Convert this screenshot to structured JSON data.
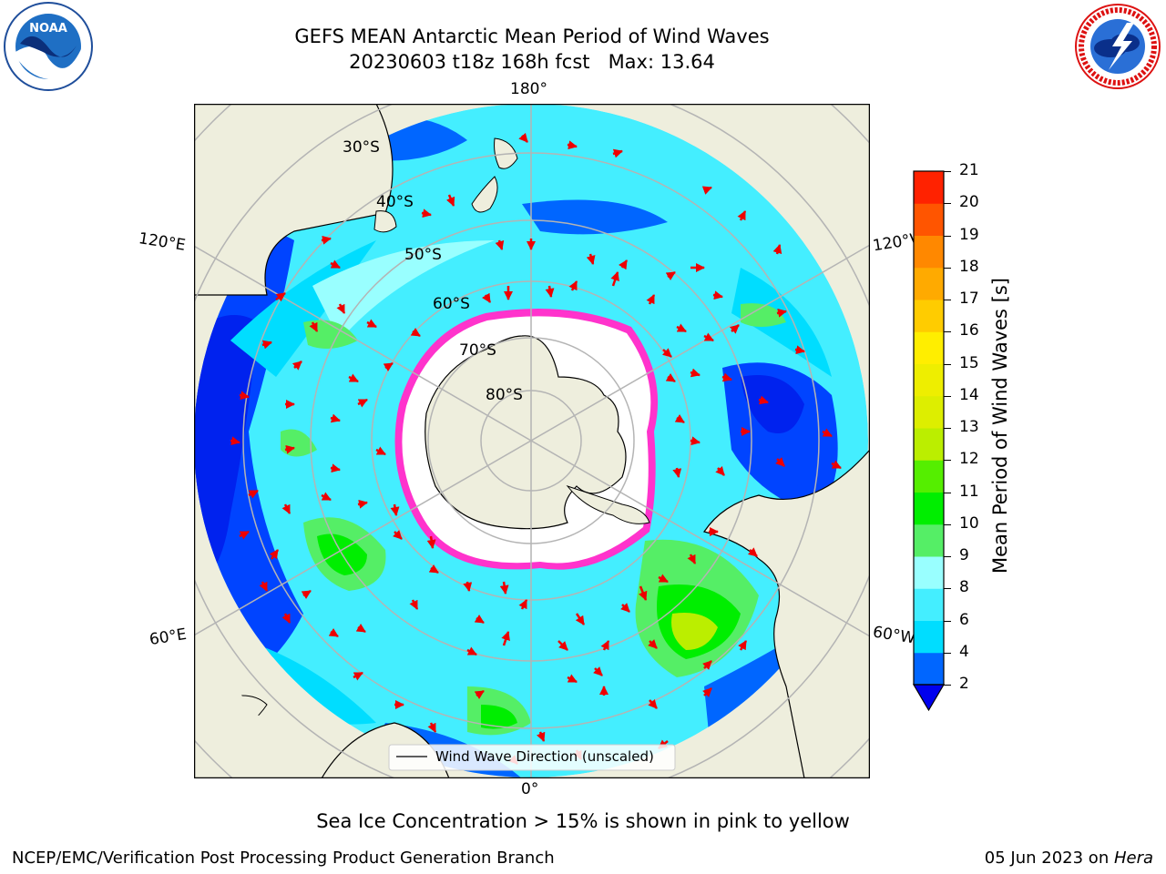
{
  "title": {
    "line1": "GEFS MEAN Antarctic Mean Period of Wind Waves",
    "line2": "20230603 t18z 168h fcst",
    "max_label": "Max: 13.64"
  },
  "logos": {
    "left": {
      "name": "noaa-logo",
      "text": "NOAA",
      "ring_text": "NATIONAL OCEANIC AND ATMOSPHERIC ADMINISTRATION · U.S. DEPARTMENT OF COMMERCE"
    },
    "right": {
      "name": "nws-logo",
      "ring_text": "NATIONAL WEATHER SERVICE"
    }
  },
  "map": {
    "projection": "south-polar-stereographic",
    "longitude_labels": {
      "top": "180°",
      "bottom": "0°",
      "upper_left": "120°E",
      "lower_left": "60°E",
      "upper_right": "120°W",
      "lower_right": "60°W"
    },
    "latitude_labels": [
      "30°S",
      "40°S",
      "50°S",
      "60°S",
      "70°S",
      "80°S"
    ],
    "legend_label": "Wind Wave Direction (unscaled)",
    "colors": {
      "land": "#eeeedd",
      "ice": "#ffffff",
      "ice_edge": "#ff33cc",
      "arrow": "#ee0000",
      "grid": "#b4b4b4"
    }
  },
  "colorbar": {
    "label": "Mean Period of Wind Waves [s]",
    "ticks": [
      "2",
      "4",
      "6",
      "8",
      "9",
      "10",
      "11",
      "12",
      "13",
      "14",
      "15",
      "16",
      "17",
      "18",
      "19",
      "20",
      "21"
    ],
    "colors": [
      "#0066ff",
      "#00ddff",
      "#44eeff",
      "#99ffff",
      "#55ee66",
      "#00ee00",
      "#55ee00",
      "#bbee00",
      "#ddee00",
      "#eeee00",
      "#ffee00",
      "#ffcc00",
      "#ffaa00",
      "#ff8800",
      "#ff5500",
      "#ff2200",
      "#0000ee"
    ],
    "extend": "min"
  },
  "caption": "Sea Ice Concentration > 15% is shown in pink to yellow",
  "footer": {
    "left": "NCEP/EMC/Verification Post Processing Product Generation Branch",
    "date": "05 Jun 2023 on ",
    "host": "Hera"
  }
}
